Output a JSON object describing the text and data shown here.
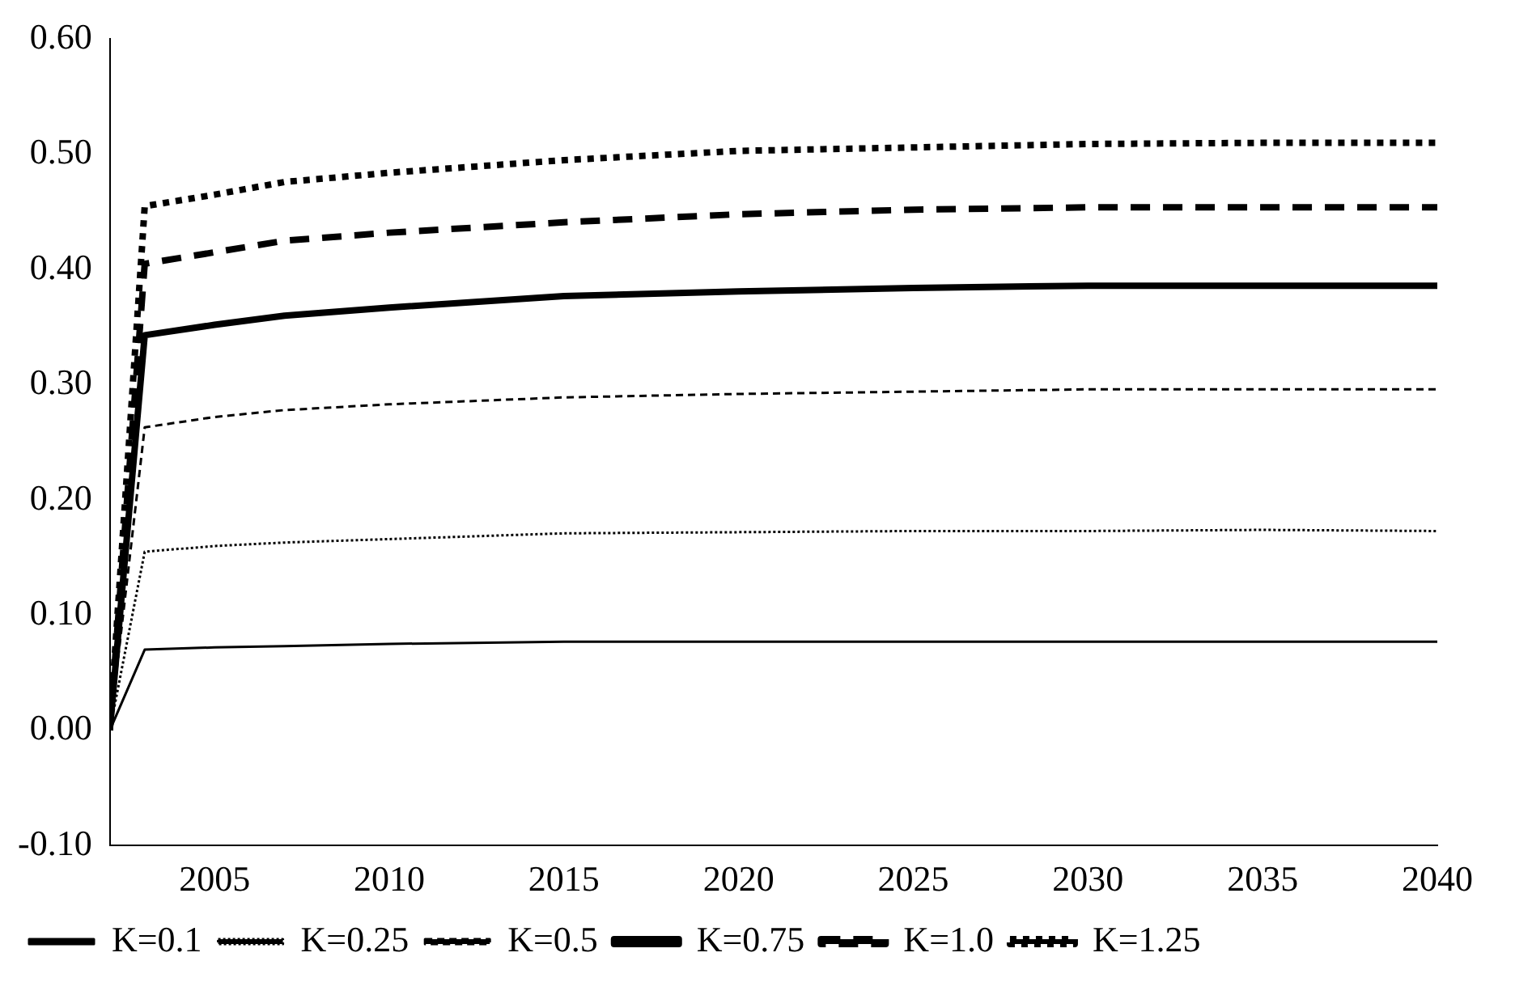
{
  "chart_data": {
    "type": "line",
    "x": [
      2002,
      2003,
      2005,
      2007,
      2010,
      2015,
      2020,
      2025,
      2030,
      2035,
      2040
    ],
    "xlim": [
      2002,
      2040
    ],
    "xticks": [
      2005,
      2010,
      2015,
      2020,
      2025,
      2030,
      2035,
      2040
    ],
    "ylim": [
      -0.1,
      0.6
    ],
    "yticks": [
      {
        "value": -0.1,
        "label": "-0.10"
      },
      {
        "value": 0,
        "label": "0.00"
      },
      {
        "value": 0.1,
        "label": "0.10"
      },
      {
        "value": 0.2,
        "label": "0.20"
      },
      {
        "value": 0.3,
        "label": "0.30"
      },
      {
        "value": 0.4,
        "label": "0.40"
      },
      {
        "value": 0.5,
        "label": "0.50"
      },
      {
        "value": 0.6,
        "label": "0.60"
      }
    ],
    "grid": false,
    "legend": "bottom",
    "marker": "none",
    "series": [
      {
        "name": "K=0.1",
        "color": "#000000",
        "line_style": "solid",
        "values": [
          0,
          0.07,
          0.072,
          0.073,
          0.075,
          0.077,
          0.077,
          0.077,
          0.077,
          0.077,
          0.077
        ]
      },
      {
        "name": "K=0.25",
        "color": "#000000",
        "line_style": "dotted",
        "values": [
          0,
          0.155,
          0.16,
          0.163,
          0.166,
          0.171,
          0.172,
          0.173,
          0.173,
          0.174,
          0.173
        ]
      },
      {
        "name": "K=0.5",
        "color": "#000000",
        "line_style": "dashed",
        "values": [
          0,
          0.263,
          0.272,
          0.278,
          0.283,
          0.289,
          0.292,
          0.294,
          0.296,
          0.296,
          0.296
        ]
      },
      {
        "name": "K=0.75",
        "color": "#000000",
        "line_style": "solid",
        "values": [
          0,
          0.343,
          0.352,
          0.36,
          0.367,
          0.377,
          0.381,
          0.384,
          0.386,
          0.386,
          0.386
        ]
      },
      {
        "name": "K=1.0",
        "color": "#000000",
        "line_style": "dashed",
        "values": [
          0,
          0.405,
          0.415,
          0.425,
          0.432,
          0.441,
          0.448,
          0.452,
          0.454,
          0.454,
          0.454
        ]
      },
      {
        "name": "K=1.25",
        "color": "#000000",
        "line_style": "dotted",
        "values": [
          0,
          0.455,
          0.465,
          0.476,
          0.484,
          0.495,
          0.503,
          0.506,
          0.509,
          0.51,
          0.51
        ]
      }
    ]
  }
}
